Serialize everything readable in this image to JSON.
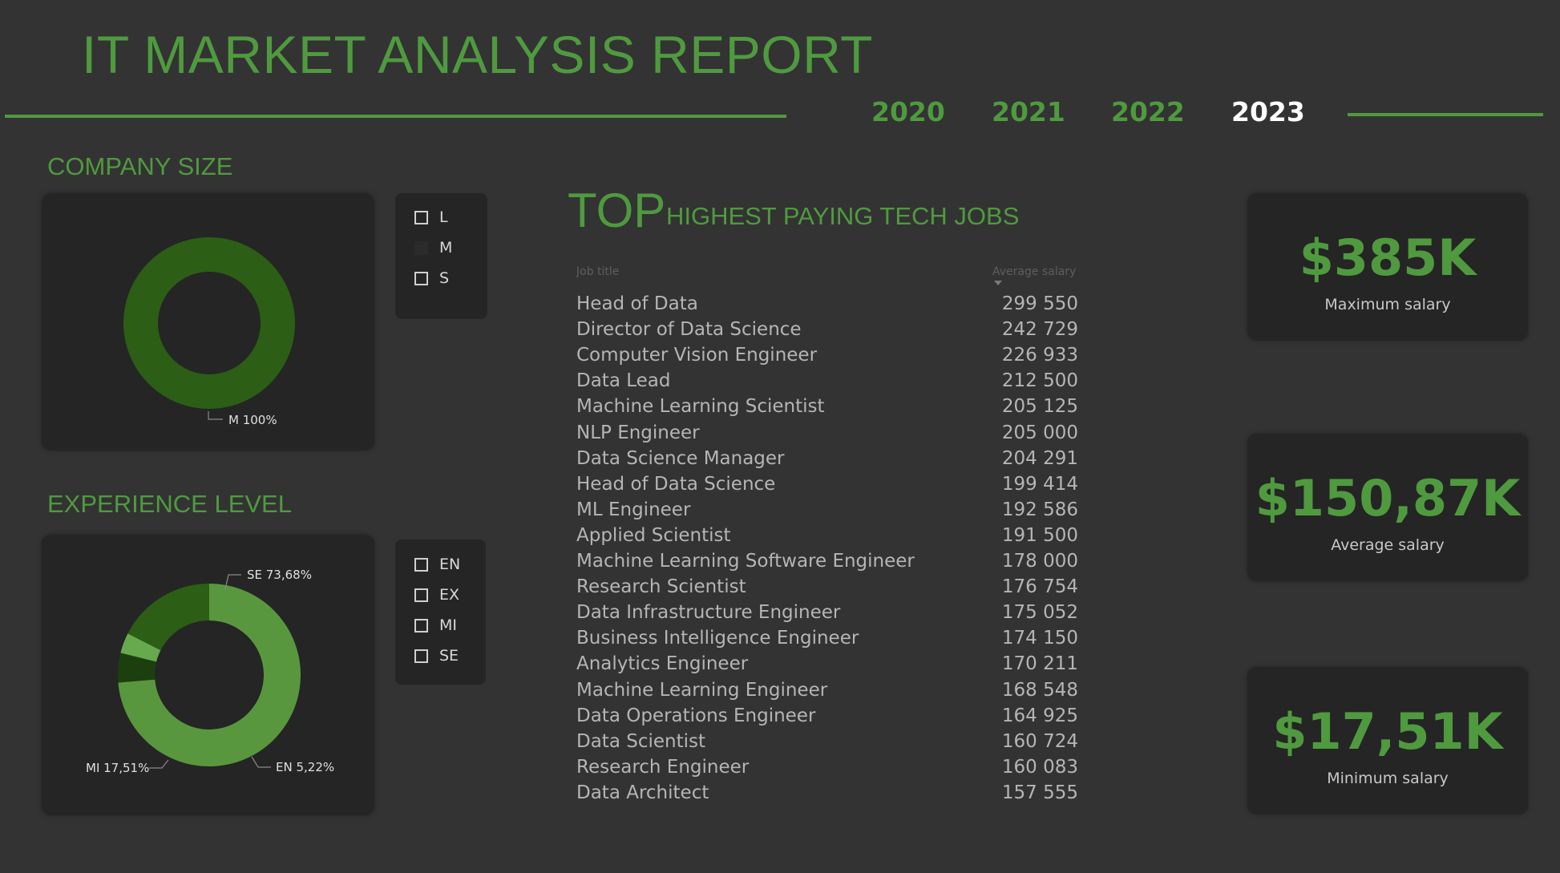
{
  "header": {
    "title": "IT MARKET ANALYSIS REPORT",
    "years": [
      {
        "label": "2020",
        "active": false
      },
      {
        "label": "2021",
        "active": false
      },
      {
        "label": "2022",
        "active": false
      },
      {
        "label": "2023",
        "active": true
      }
    ]
  },
  "company_size": {
    "title": "COMPANY SIZE",
    "filter": [
      "L",
      "M",
      "S"
    ]
  },
  "experience": {
    "title": "EXPERIENCE LEVEL",
    "filter": [
      "EN",
      "EX",
      "MI",
      "SE"
    ]
  },
  "top_jobs": {
    "top_word": "TOP",
    "subtitle": "HIGHEST PAYING TECH JOBS",
    "col_job": "Job title",
    "col_salary": "Average salary",
    "rows": [
      {
        "job": "Head of Data",
        "salary": "299 550"
      },
      {
        "job": "Director of Data Science",
        "salary": "242 729"
      },
      {
        "job": "Computer Vision Engineer",
        "salary": "226 933"
      },
      {
        "job": "Data Lead",
        "salary": "212 500"
      },
      {
        "job": "Machine Learning Scientist",
        "salary": "205 125"
      },
      {
        "job": "NLP Engineer",
        "salary": "205 000"
      },
      {
        "job": "Data Science Manager",
        "salary": "204 291"
      },
      {
        "job": "Head of Data Science",
        "salary": "199 414"
      },
      {
        "job": "ML Engineer",
        "salary": "192 586"
      },
      {
        "job": "Applied Scientist",
        "salary": "191 500"
      },
      {
        "job": "Machine Learning Software Engineer",
        "salary": "178 000"
      },
      {
        "job": "Research Scientist",
        "salary": "176 754"
      },
      {
        "job": "Data Infrastructure Engineer",
        "salary": "175 052"
      },
      {
        "job": "Business Intelligence Engineer",
        "salary": "174 150"
      },
      {
        "job": "Analytics Engineer",
        "salary": "170 211"
      },
      {
        "job": "Machine Learning Engineer",
        "salary": "168 548"
      },
      {
        "job": "Data Operations Engineer",
        "salary": "164 925"
      },
      {
        "job": "Data Scientist",
        "salary": "160 724"
      },
      {
        "job": "Research Engineer",
        "salary": "160 083"
      },
      {
        "job": "Data Architect",
        "salary": "157 555"
      }
    ]
  },
  "kpis": {
    "max": {
      "value": "$385K",
      "label": "Maximum salary"
    },
    "avg": {
      "value": "$150,87K",
      "label": "Average salary"
    },
    "min": {
      "value": "$17,51K",
      "label": "Minimum salary"
    }
  },
  "colors": {
    "accent": "#4f9a3f",
    "background": "#333333",
    "card": "#252525"
  },
  "chart_data": [
    {
      "type": "pie",
      "variant": "donut",
      "title": "COMPANY SIZE",
      "categories": [
        "M"
      ],
      "values": [
        100
      ],
      "labels": [
        "M 100%"
      ],
      "colors": [
        "#2c5e16"
      ]
    },
    {
      "type": "pie",
      "variant": "donut",
      "title": "EXPERIENCE LEVEL",
      "categories": [
        "SE",
        "EN",
        "EX",
        "MI"
      ],
      "values": [
        73.68,
        5.22,
        3.59,
        17.51
      ],
      "labels": [
        "SE 73,68%",
        "EN 5,22%",
        "",
        "MI 17,51%"
      ],
      "colors": [
        "#59973f",
        "#1d3f10",
        "#66aa4d",
        "#2c5e16"
      ]
    }
  ]
}
